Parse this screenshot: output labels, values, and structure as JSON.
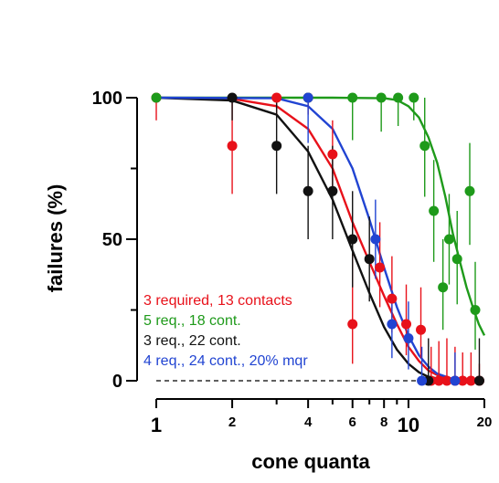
{
  "chart_data": {
    "type": "scatter",
    "title": "",
    "xlabel": "cone quanta",
    "ylabel": "failures (%)",
    "xscale": "log",
    "xlim": [
      1,
      20
    ],
    "ylim": [
      0,
      100
    ],
    "xticks": [
      {
        "value": 1,
        "label": "1",
        "style": "big"
      },
      {
        "value": 2,
        "label": "2",
        "style": "small"
      },
      {
        "value": 4,
        "label": "4",
        "style": "small"
      },
      {
        "value": 6,
        "label": "6",
        "style": "small"
      },
      {
        "value": 8,
        "label": "8",
        "style": "small"
      },
      {
        "value": 10,
        "label": "10",
        "style": "big"
      },
      {
        "value": 20,
        "label": "20",
        "style": "small"
      }
    ],
    "xticks_minor": [
      3,
      5,
      7,
      9
    ],
    "yticks": [
      {
        "value": 0,
        "label": "0"
      },
      {
        "value": 50,
        "label": "50"
      },
      {
        "value": 100,
        "label": "100"
      }
    ],
    "yticks_minor": [
      25,
      75
    ],
    "zero_line": true,
    "series": [
      {
        "name": "3 required, 13 contacts",
        "color": "#e8111a",
        "points": [
          {
            "x": 1,
            "y": 100,
            "lo": 92,
            "hi": 100
          },
          {
            "x": 2,
            "y": 83,
            "lo": 66,
            "hi": 100
          },
          {
            "x": 3,
            "y": 100,
            "lo": 94,
            "hi": 100
          },
          {
            "x": 4,
            "y": 100,
            "lo": 94,
            "hi": 100
          },
          {
            "x": 5,
            "y": 80,
            "lo": 66,
            "hi": 92
          },
          {
            "x": 6,
            "y": 20,
            "lo": 6,
            "hi": 45
          },
          {
            "x": 7.7,
            "y": 40,
            "lo": 26,
            "hi": 56
          },
          {
            "x": 8.6,
            "y": 29,
            "lo": 17,
            "hi": 44
          },
          {
            "x": 9.8,
            "y": 20,
            "lo": 9,
            "hi": 34
          },
          {
            "x": 11.2,
            "y": 18,
            "lo": 8,
            "hi": 33
          },
          {
            "x": 12.3,
            "y": 0,
            "lo": 0,
            "hi": 12
          },
          {
            "x": 13.2,
            "y": 0,
            "lo": 0,
            "hi": 14
          },
          {
            "x": 14.2,
            "y": 0,
            "lo": 0,
            "hi": 15
          },
          {
            "x": 15.3,
            "y": 0,
            "lo": 0,
            "hi": 12
          },
          {
            "x": 16.4,
            "y": 0,
            "lo": 0,
            "hi": 10
          },
          {
            "x": 17.7,
            "y": 0,
            "lo": 0,
            "hi": 10
          },
          {
            "x": 19.1,
            "y": 0,
            "lo": 0,
            "hi": 6
          }
        ],
        "fit": [
          [
            1,
            100
          ],
          [
            2,
            99.6
          ],
          [
            3,
            97
          ],
          [
            4,
            89
          ],
          [
            5,
            75
          ],
          [
            6,
            56
          ],
          [
            7,
            42
          ],
          [
            8,
            30
          ],
          [
            9,
            20
          ],
          [
            10,
            12
          ],
          [
            11,
            7
          ],
          [
            12,
            3.6
          ],
          [
            13,
            2
          ],
          [
            15,
            0.5
          ],
          [
            20,
            0.1
          ]
        ]
      },
      {
        "name": "5 req., 18 cont.",
        "color": "#1e9a1a",
        "points": [
          {
            "x": 1,
            "y": 100,
            "lo": 100,
            "hi": 100
          },
          {
            "x": 4,
            "y": 100,
            "lo": 100,
            "hi": 100
          },
          {
            "x": 6,
            "y": 100,
            "lo": 85,
            "hi": 100
          },
          {
            "x": 7.8,
            "y": 100,
            "lo": 88,
            "hi": 100
          },
          {
            "x": 9.1,
            "y": 100,
            "lo": 90,
            "hi": 100
          },
          {
            "x": 10.5,
            "y": 100,
            "lo": 92,
            "hi": 100
          },
          {
            "x": 11.6,
            "y": 83,
            "lo": 65,
            "hi": 100
          },
          {
            "x": 12.6,
            "y": 60,
            "lo": 42,
            "hi": 78
          },
          {
            "x": 13.7,
            "y": 33,
            "lo": 18,
            "hi": 50
          },
          {
            "x": 14.5,
            "y": 50,
            "lo": 34,
            "hi": 66
          },
          {
            "x": 15.6,
            "y": 43,
            "lo": 27,
            "hi": 60
          },
          {
            "x": 17.5,
            "y": 67,
            "lo": 48,
            "hi": 84
          },
          {
            "x": 18.4,
            "y": 25,
            "lo": 11,
            "hi": 42
          }
        ],
        "fit": [
          [
            1,
            100
          ],
          [
            5,
            100
          ],
          [
            8,
            99.8
          ],
          [
            9,
            99.2
          ],
          [
            10,
            97
          ],
          [
            11,
            93
          ],
          [
            12,
            86
          ],
          [
            13,
            77
          ],
          [
            14,
            65
          ],
          [
            15,
            52
          ],
          [
            16,
            42
          ],
          [
            17,
            33
          ],
          [
            18,
            26
          ],
          [
            19,
            20
          ],
          [
            20,
            16
          ]
        ]
      },
      {
        "name": "3 req., 22 cont.",
        "color": "#111111",
        "points": [
          {
            "x": 2,
            "y": 100,
            "lo": 92,
            "hi": 100
          },
          {
            "x": 3,
            "y": 83,
            "lo": 66,
            "hi": 100
          },
          {
            "x": 4,
            "y": 67,
            "lo": 50,
            "hi": 83
          },
          {
            "x": 5,
            "y": 67,
            "lo": 50,
            "hi": 83
          },
          {
            "x": 6,
            "y": 50,
            "lo": 33,
            "hi": 67
          },
          {
            "x": 7,
            "y": 43,
            "lo": 28,
            "hi": 58
          },
          {
            "x": 12,
            "y": 0,
            "lo": 0,
            "hi": 15
          },
          {
            "x": 19.1,
            "y": 0,
            "lo": 0,
            "hi": 15
          }
        ],
        "fit": [
          [
            1,
            100
          ],
          [
            2,
            99
          ],
          [
            3,
            94
          ],
          [
            4,
            81
          ],
          [
            5,
            64
          ],
          [
            6,
            46
          ],
          [
            7,
            31
          ],
          [
            8,
            19
          ],
          [
            9,
            11
          ],
          [
            10,
            6
          ],
          [
            11,
            3
          ],
          [
            12,
            1.4
          ],
          [
            14,
            0.3
          ],
          [
            20,
            0
          ]
        ]
      },
      {
        "name": "4 req., 24 cont., 20% mqr",
        "color": "#2144d2",
        "points": [
          {
            "x": 4,
            "y": 100,
            "lo": 84,
            "hi": 100
          },
          {
            "x": 7.4,
            "y": 50,
            "lo": 36,
            "hi": 64
          },
          {
            "x": 8.6,
            "y": 20,
            "lo": 8,
            "hi": 32
          },
          {
            "x": 10,
            "y": 15,
            "lo": 4,
            "hi": 28
          },
          {
            "x": 11.3,
            "y": 0,
            "lo": 0,
            "hi": 12
          },
          {
            "x": 15.3,
            "y": 0,
            "lo": 0,
            "hi": 10
          }
        ],
        "fit": [
          [
            1,
            100
          ],
          [
            3,
            99.8
          ],
          [
            4,
            97
          ],
          [
            5,
            89
          ],
          [
            6,
            75
          ],
          [
            7,
            57
          ],
          [
            8,
            40
          ],
          [
            9,
            26
          ],
          [
            10,
            16
          ],
          [
            11,
            9
          ],
          [
            12,
            5
          ],
          [
            13,
            2.5
          ],
          [
            15,
            0.6
          ],
          [
            20,
            0
          ]
        ]
      }
    ],
    "legend": {
      "placement": "lower-left",
      "entries": [
        {
          "label": "3 required, 13 contacts",
          "color": "#e8111a"
        },
        {
          "label": "5 req., 18 cont.",
          "color": "#1e9a1a"
        },
        {
          "label": "3 req., 22 cont.",
          "color": "#111111"
        },
        {
          "label": "4 req., 24 cont., 20% mqr",
          "color": "#2144d2"
        }
      ]
    }
  }
}
